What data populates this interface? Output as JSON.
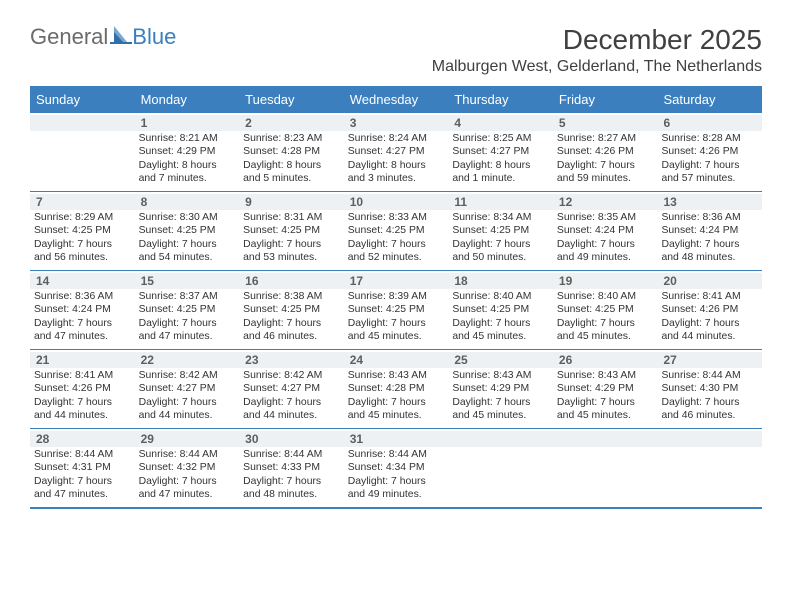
{
  "brand": {
    "part1": "General",
    "part2": "Blue"
  },
  "title": "December 2025",
  "subtitle": "Malburgen West, Gelderland, The Netherlands",
  "colors": {
    "accent": "#3b7fbf",
    "dayband": "#eef1f4",
    "text": "#333333",
    "title": "#404040",
    "logo_gray": "#6b6b6b",
    "bg": "#ffffff"
  },
  "day_names": [
    "Sunday",
    "Monday",
    "Tuesday",
    "Wednesday",
    "Thursday",
    "Friday",
    "Saturday"
  ],
  "weeks": [
    [
      {
        "num": "",
        "sunrise": "",
        "sunset": "",
        "daylight": ""
      },
      {
        "num": "1",
        "sunrise": "Sunrise: 8:21 AM",
        "sunset": "Sunset: 4:29 PM",
        "daylight": "Daylight: 8 hours and 7 minutes."
      },
      {
        "num": "2",
        "sunrise": "Sunrise: 8:23 AM",
        "sunset": "Sunset: 4:28 PM",
        "daylight": "Daylight: 8 hours and 5 minutes."
      },
      {
        "num": "3",
        "sunrise": "Sunrise: 8:24 AM",
        "sunset": "Sunset: 4:27 PM",
        "daylight": "Daylight: 8 hours and 3 minutes."
      },
      {
        "num": "4",
        "sunrise": "Sunrise: 8:25 AM",
        "sunset": "Sunset: 4:27 PM",
        "daylight": "Daylight: 8 hours and 1 minute."
      },
      {
        "num": "5",
        "sunrise": "Sunrise: 8:27 AM",
        "sunset": "Sunset: 4:26 PM",
        "daylight": "Daylight: 7 hours and 59 minutes."
      },
      {
        "num": "6",
        "sunrise": "Sunrise: 8:28 AM",
        "sunset": "Sunset: 4:26 PM",
        "daylight": "Daylight: 7 hours and 57 minutes."
      }
    ],
    [
      {
        "num": "7",
        "sunrise": "Sunrise: 8:29 AM",
        "sunset": "Sunset: 4:25 PM",
        "daylight": "Daylight: 7 hours and 56 minutes."
      },
      {
        "num": "8",
        "sunrise": "Sunrise: 8:30 AM",
        "sunset": "Sunset: 4:25 PM",
        "daylight": "Daylight: 7 hours and 54 minutes."
      },
      {
        "num": "9",
        "sunrise": "Sunrise: 8:31 AM",
        "sunset": "Sunset: 4:25 PM",
        "daylight": "Daylight: 7 hours and 53 minutes."
      },
      {
        "num": "10",
        "sunrise": "Sunrise: 8:33 AM",
        "sunset": "Sunset: 4:25 PM",
        "daylight": "Daylight: 7 hours and 52 minutes."
      },
      {
        "num": "11",
        "sunrise": "Sunrise: 8:34 AM",
        "sunset": "Sunset: 4:25 PM",
        "daylight": "Daylight: 7 hours and 50 minutes."
      },
      {
        "num": "12",
        "sunrise": "Sunrise: 8:35 AM",
        "sunset": "Sunset: 4:24 PM",
        "daylight": "Daylight: 7 hours and 49 minutes."
      },
      {
        "num": "13",
        "sunrise": "Sunrise: 8:36 AM",
        "sunset": "Sunset: 4:24 PM",
        "daylight": "Daylight: 7 hours and 48 minutes."
      }
    ],
    [
      {
        "num": "14",
        "sunrise": "Sunrise: 8:36 AM",
        "sunset": "Sunset: 4:24 PM",
        "daylight": "Daylight: 7 hours and 47 minutes."
      },
      {
        "num": "15",
        "sunrise": "Sunrise: 8:37 AM",
        "sunset": "Sunset: 4:25 PM",
        "daylight": "Daylight: 7 hours and 47 minutes."
      },
      {
        "num": "16",
        "sunrise": "Sunrise: 8:38 AM",
        "sunset": "Sunset: 4:25 PM",
        "daylight": "Daylight: 7 hours and 46 minutes."
      },
      {
        "num": "17",
        "sunrise": "Sunrise: 8:39 AM",
        "sunset": "Sunset: 4:25 PM",
        "daylight": "Daylight: 7 hours and 45 minutes."
      },
      {
        "num": "18",
        "sunrise": "Sunrise: 8:40 AM",
        "sunset": "Sunset: 4:25 PM",
        "daylight": "Daylight: 7 hours and 45 minutes."
      },
      {
        "num": "19",
        "sunrise": "Sunrise: 8:40 AM",
        "sunset": "Sunset: 4:25 PM",
        "daylight": "Daylight: 7 hours and 45 minutes."
      },
      {
        "num": "20",
        "sunrise": "Sunrise: 8:41 AM",
        "sunset": "Sunset: 4:26 PM",
        "daylight": "Daylight: 7 hours and 44 minutes."
      }
    ],
    [
      {
        "num": "21",
        "sunrise": "Sunrise: 8:41 AM",
        "sunset": "Sunset: 4:26 PM",
        "daylight": "Daylight: 7 hours and 44 minutes."
      },
      {
        "num": "22",
        "sunrise": "Sunrise: 8:42 AM",
        "sunset": "Sunset: 4:27 PM",
        "daylight": "Daylight: 7 hours and 44 minutes."
      },
      {
        "num": "23",
        "sunrise": "Sunrise: 8:42 AM",
        "sunset": "Sunset: 4:27 PM",
        "daylight": "Daylight: 7 hours and 44 minutes."
      },
      {
        "num": "24",
        "sunrise": "Sunrise: 8:43 AM",
        "sunset": "Sunset: 4:28 PM",
        "daylight": "Daylight: 7 hours and 45 minutes."
      },
      {
        "num": "25",
        "sunrise": "Sunrise: 8:43 AM",
        "sunset": "Sunset: 4:29 PM",
        "daylight": "Daylight: 7 hours and 45 minutes."
      },
      {
        "num": "26",
        "sunrise": "Sunrise: 8:43 AM",
        "sunset": "Sunset: 4:29 PM",
        "daylight": "Daylight: 7 hours and 45 minutes."
      },
      {
        "num": "27",
        "sunrise": "Sunrise: 8:44 AM",
        "sunset": "Sunset: 4:30 PM",
        "daylight": "Daylight: 7 hours and 46 minutes."
      }
    ],
    [
      {
        "num": "28",
        "sunrise": "Sunrise: 8:44 AM",
        "sunset": "Sunset: 4:31 PM",
        "daylight": "Daylight: 7 hours and 47 minutes."
      },
      {
        "num": "29",
        "sunrise": "Sunrise: 8:44 AM",
        "sunset": "Sunset: 4:32 PM",
        "daylight": "Daylight: 7 hours and 47 minutes."
      },
      {
        "num": "30",
        "sunrise": "Sunrise: 8:44 AM",
        "sunset": "Sunset: 4:33 PM",
        "daylight": "Daylight: 7 hours and 48 minutes."
      },
      {
        "num": "31",
        "sunrise": "Sunrise: 8:44 AM",
        "sunset": "Sunset: 4:34 PM",
        "daylight": "Daylight: 7 hours and 49 minutes."
      },
      {
        "num": "",
        "sunrise": "",
        "sunset": "",
        "daylight": ""
      },
      {
        "num": "",
        "sunrise": "",
        "sunset": "",
        "daylight": ""
      },
      {
        "num": "",
        "sunrise": "",
        "sunset": "",
        "daylight": ""
      }
    ]
  ]
}
